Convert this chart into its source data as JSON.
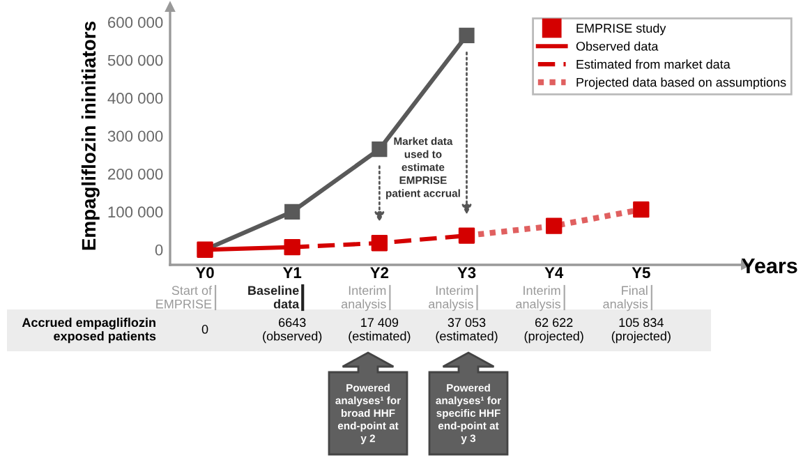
{
  "chart_data": {
    "type": "line",
    "categories": [
      "Y0",
      "Y1",
      "Y2",
      "Y3",
      "Y4",
      "Y5"
    ],
    "xlabel": "Years",
    "ylabel": "Empagliflozin ininitiators",
    "ylim": [
      -40000,
      640000
    ],
    "yticks": [
      {
        "value": 0,
        "label": "0"
      },
      {
        "value": 100000,
        "label": "100 000"
      },
      {
        "value": 200000,
        "label": "200 000"
      },
      {
        "value": 300000,
        "label": "300 000"
      },
      {
        "value": 400000,
        "label": "400 000"
      },
      {
        "value": 500000,
        "label": "500 000"
      },
      {
        "value": 600000,
        "label": "600 000"
      }
    ],
    "grid": false,
    "legend": "top right",
    "series": [
      {
        "color": "#595959",
        "marker": "square",
        "line_style": "solid",
        "values": [
          0,
          100000,
          265000,
          565000,
          null,
          null
        ]
      },
      {
        "name": "Observed data",
        "color": "#d40000",
        "marker": "none",
        "line_style": "solid",
        "values": [
          0,
          6643,
          null,
          null,
          null,
          null
        ]
      },
      {
        "name": "Estimated from market data",
        "color": "#d40000",
        "marker": "none",
        "line_style": "dashed",
        "values": [
          null,
          6643,
          17409,
          37053,
          null,
          null
        ]
      },
      {
        "name": "Projected data based on assumptions",
        "color": "#e06060",
        "marker": "none",
        "line_style": "dotted",
        "values": [
          null,
          null,
          null,
          37053,
          62622,
          105834
        ]
      },
      {
        "type": "scatter",
        "name": "EMPRISE study",
        "color": "#d40000",
        "marker": "square",
        "values": [
          0,
          6643,
          17409,
          37053,
          62622,
          105834
        ]
      }
    ],
    "annotations": [
      "Market data\nused to\nestimate\nEMPRISE\npatient accrual",
      "Accrued empagliflozin\nexposed patients",
      "Powered\nanalyses¹ for\nbroad HHF\nend-point at\ny 2",
      "Powered\nanalyses¹ for\nspecific HHF\nend-point at\ny 3",
      "Start of\nEMPRISE",
      "Baseline\ndata",
      "Interim\nanalysis",
      "Interim\nanalysis",
      "Interim\nanalysis",
      "Final\nanalysis",
      "0",
      "6643\n(observed)",
      "17 409\n(estimated)",
      "37 053\n(estimated)",
      "62 622\n(projected)",
      "105 834\n(projected)"
    ]
  }
}
